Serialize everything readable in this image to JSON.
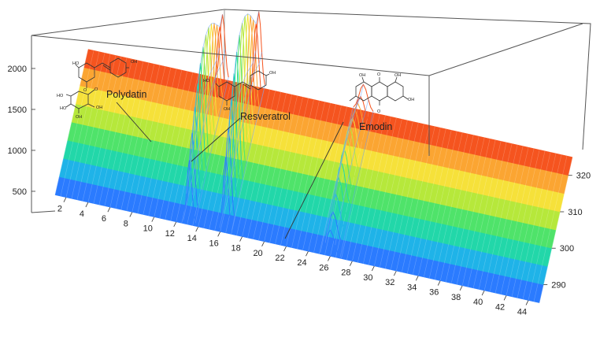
{
  "chart_data": {
    "type": "3d-surface",
    "x_ticks": [
      "2",
      "4",
      "6",
      "8",
      "10",
      "12",
      "14",
      "16",
      "18",
      "20",
      "22",
      "24",
      "26",
      "28",
      "30",
      "32",
      "34",
      "36",
      "38",
      "40",
      "42",
      "44"
    ],
    "z_ticks": [
      "500",
      "1000",
      "1500",
      "2000"
    ],
    "wavelength_ticks": [
      "290",
      "300",
      "310",
      "320"
    ],
    "peaks": [
      {
        "name": "Polydatin",
        "time": 13.2,
        "height": 2000
      },
      {
        "name": "Resveratrol",
        "time": 16.5,
        "height": 2300
      },
      {
        "name": "Emodin",
        "time": 26.0,
        "height": 950
      }
    ],
    "baseline": 240,
    "colormap": [
      "#2b7bff",
      "#1fb3e8",
      "#22d7a9",
      "#4fe36a",
      "#b6e83b",
      "#f6e13a",
      "#fba532",
      "#f5541f"
    ]
  }
}
